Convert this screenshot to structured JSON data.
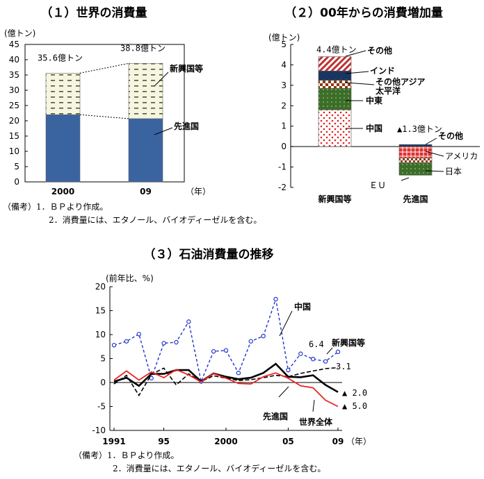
{
  "chart_data": [
    {
      "type": "bar",
      "title": "（１）世界の消費量",
      "ylabel": "(億トン)",
      "ylim": [
        0,
        45
      ],
      "yticks": [
        0,
        5,
        10,
        15,
        20,
        25,
        30,
        35,
        40,
        45
      ],
      "categories": [
        "2000",
        "09"
      ],
      "xunit": "（年）",
      "series": [
        {
          "name": "先進国",
          "values": [
            22.0,
            20.7
          ],
          "color": "#3a64a0"
        },
        {
          "name": "新興国等",
          "values": [
            13.6,
            18.1
          ],
          "color": "#f3f2dc"
        }
      ],
      "totals_labels": [
        "35.6億トン",
        "38.8億トン"
      ],
      "notes": [
        "（備考）1．ＢＰより作成。",
        "2．消費量には、エタノール、バイオディーゼルを含む。"
      ]
    },
    {
      "type": "bar",
      "title": "（２）00年からの消費増加量",
      "ylabel": "(億トン)",
      "ylim": [
        -2,
        5
      ],
      "yticks": [
        -2,
        -1,
        0,
        1,
        2,
        3,
        4,
        5
      ],
      "categories": [
        "新興国等",
        "先進国"
      ],
      "series": [
        {
          "name": "中国",
          "values": [
            1.8,
            0
          ]
        },
        {
          "name": "中東",
          "values": [
            1.05,
            0
          ]
        },
        {
          "name": "その他アジア太平洋",
          "values": [
            0.4,
            0
          ]
        },
        {
          "name": "インド",
          "values": [
            0.45,
            0
          ]
        },
        {
          "name": "その他",
          "values": [
            0.7,
            0.1
          ]
        },
        {
          "name": "アメリカ",
          "values": [
            0,
            -0.55
          ]
        },
        {
          "name": "日本",
          "values": [
            0,
            -0.25
          ]
        },
        {
          "name": "ＥＵ",
          "values": [
            0,
            -0.6
          ]
        }
      ],
      "series_labels": {
        "中国": "中国",
        "中東": "中東",
        "その他アジア太平洋": [
          "その他アジア",
          "太平洋"
        ],
        "インド": "インド",
        "その他": "その他",
        "アメリカ": "アメリカ",
        "日本": "日本",
        "ＥＵ": "ＥＵ"
      },
      "totals_labels": [
        "4.4億トン",
        "▲1.3億トン"
      ]
    },
    {
      "type": "line",
      "title": "（３）石油消費量の推移",
      "ylabel": "(前年比、%)",
      "ylim": [
        -10,
        20
      ],
      "yticks": [
        -10,
        -5,
        0,
        5,
        10,
        15,
        20
      ],
      "xlim": [
        1991,
        2009
      ],
      "xticks": [
        "1991",
        "95",
        "2000",
        "05",
        "09"
      ],
      "xunit": "（年）",
      "x": [
        1991,
        1992,
        1993,
        1994,
        1995,
        1996,
        1997,
        1998,
        1999,
        2000,
        2001,
        2002,
        2003,
        2004,
        2005,
        2006,
        2007,
        2008,
        2009
      ],
      "series": [
        {
          "name": "中国",
          "color": "#2233cc",
          "values": [
            7.8,
            8.6,
            10.1,
            0.9,
            8.2,
            8.4,
            12.7,
            0.2,
            6.5,
            6.7,
            2.0,
            8.6,
            9.7,
            17.4,
            2.6,
            6.0,
            4.9,
            4.4,
            6.4
          ]
        },
        {
          "name": "新興国等",
          "color": "#000000",
          "values": [
            -0.3,
            1.5,
            -2.7,
            1.7,
            3.0,
            -0.5,
            1.8,
            0.2,
            1.4,
            0.9,
            0.4,
            0.6,
            1.0,
            1.5,
            1.2,
            1.9,
            2.4,
            2.9,
            3.1
          ]
        },
        {
          "name": "世界全体",
          "color": "#000000",
          "values": [
            0.2,
            1.0,
            -0.7,
            1.8,
            1.8,
            2.6,
            2.6,
            0.2,
            1.9,
            1.2,
            0.7,
            1.0,
            2.0,
            3.9,
            1.2,
            1.1,
            1.5,
            -0.5,
            -2.0
          ]
        },
        {
          "name": "先進国",
          "color": "#ee2222",
          "values": [
            0.5,
            2.4,
            0.5,
            2.2,
            1.0,
            2.7,
            1.6,
            0.1,
            1.9,
            0.9,
            -0.2,
            -0.3,
            1.2,
            2.0,
            0.9,
            -0.7,
            -1.1,
            -3.7,
            -5.0
          ]
        }
      ],
      "end_labels": {
        "中国": "6.4",
        "新興国等": "3.1",
        "世界全体": "▲ 2.0",
        "先進国": "▲ 5.0"
      },
      "notes": [
        "（備考）1．ＢＰより作成。",
        "2．消費量には、エタノール、バイオディーゼルを含む。"
      ]
    }
  ]
}
